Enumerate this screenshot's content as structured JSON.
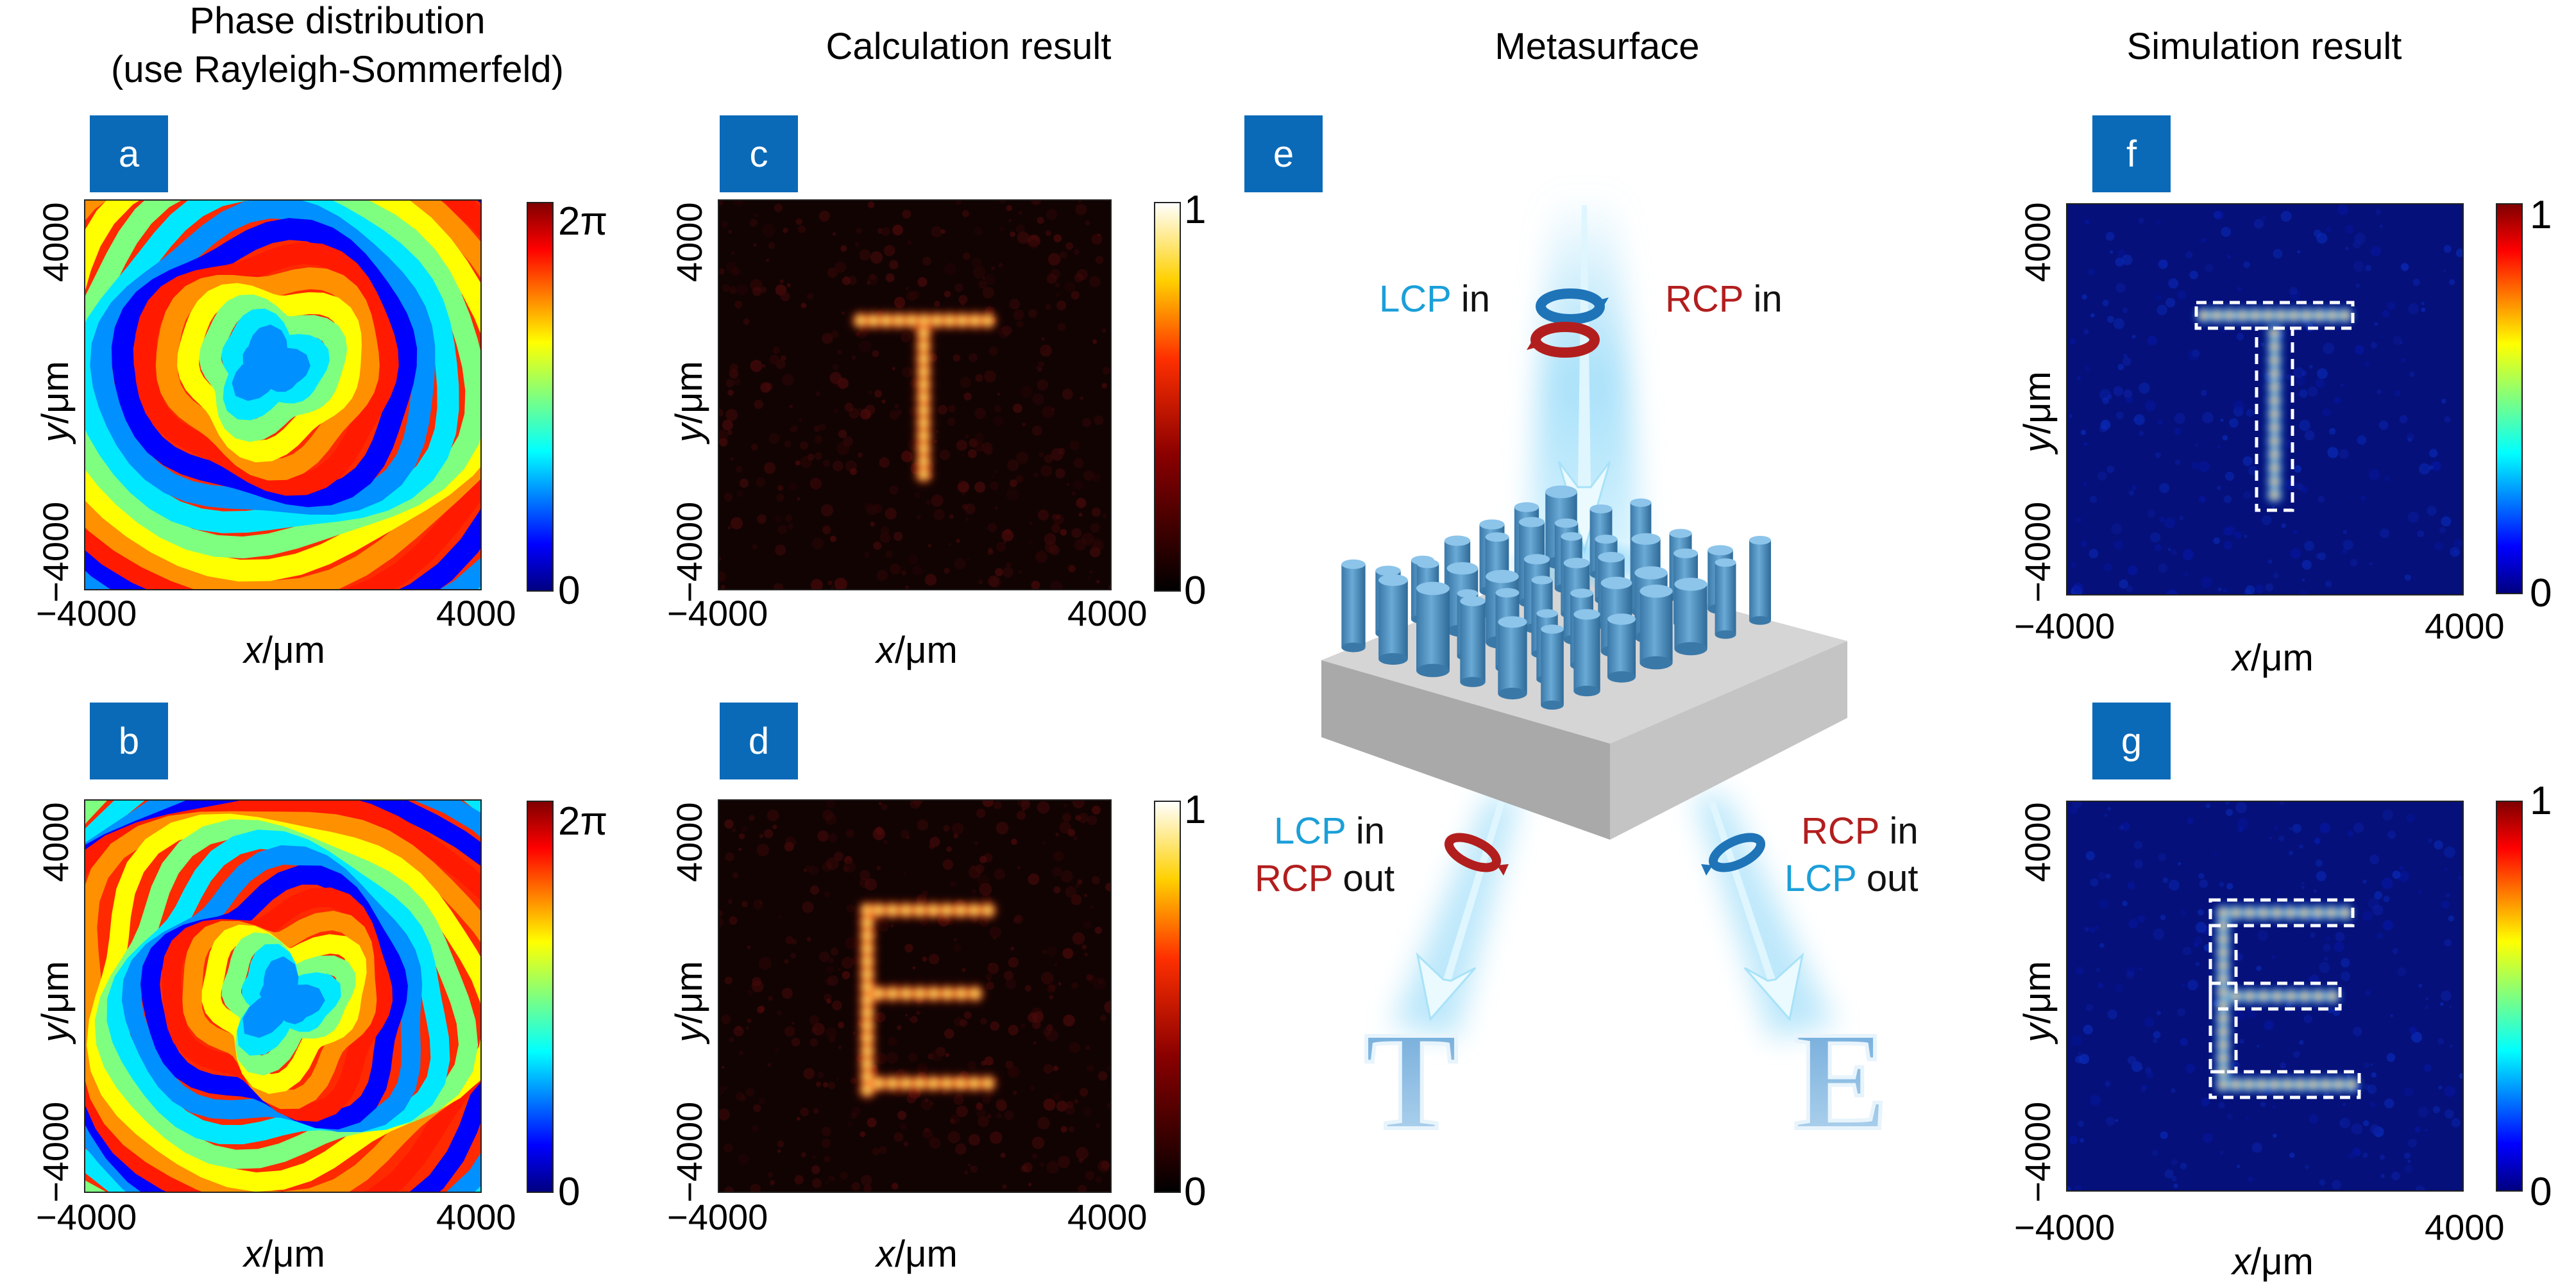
{
  "column_titles": {
    "phase_line1": "Phase distribution",
    "phase_line2": "(use Rayleigh-Sommerfeld)",
    "calc": "Calculation result",
    "meta": "Metasurface",
    "sim": "Simulation result"
  },
  "panels": {
    "a": {
      "badge": "a",
      "cb_max": "2π",
      "cb_min": "0"
    },
    "b": {
      "badge": "b",
      "cb_max": "2π",
      "cb_min": "0"
    },
    "c": {
      "badge": "c",
      "cb_max": "1",
      "cb_min": "0"
    },
    "d": {
      "badge": "d",
      "cb_max": "1",
      "cb_min": "0"
    },
    "e": {
      "badge": "e"
    },
    "f": {
      "badge": "f",
      "cb_max": "1",
      "cb_min": "0"
    },
    "g": {
      "badge": "g",
      "cb_max": "1",
      "cb_min": "0"
    }
  },
  "axes": {
    "x_min": "−4000",
    "x_max": "4000",
    "y_min": "−4000",
    "y_max": "4000",
    "x_var": "x",
    "y_var": "y",
    "unit": "/μm"
  },
  "metasurface": {
    "top_left_pol": "LCP",
    "top_left_suffix": " in",
    "top_right_pol": "RCP",
    "top_right_suffix": " in",
    "bottom_left_in_pol": "LCP",
    "bottom_left_in_suffix": " in",
    "bottom_left_out_pol": "RCP",
    "bottom_left_out_suffix": " out",
    "bottom_right_in_pol": "RCP",
    "bottom_right_in_suffix": " in",
    "bottom_right_out_pol": "LCP",
    "bottom_right_out_suffix": " out",
    "output_left": "T",
    "output_right": "E"
  },
  "colors": {
    "badge": "#0a6ab8",
    "lcp": "#1b9fd9",
    "rcp": "#b21e1e",
    "pillar": "#5b9ccb",
    "substrate": "#b9b9b9",
    "beam": "#7fd0f5",
    "jet_background": "#05107a",
    "hot_background": "#120303"
  }
}
